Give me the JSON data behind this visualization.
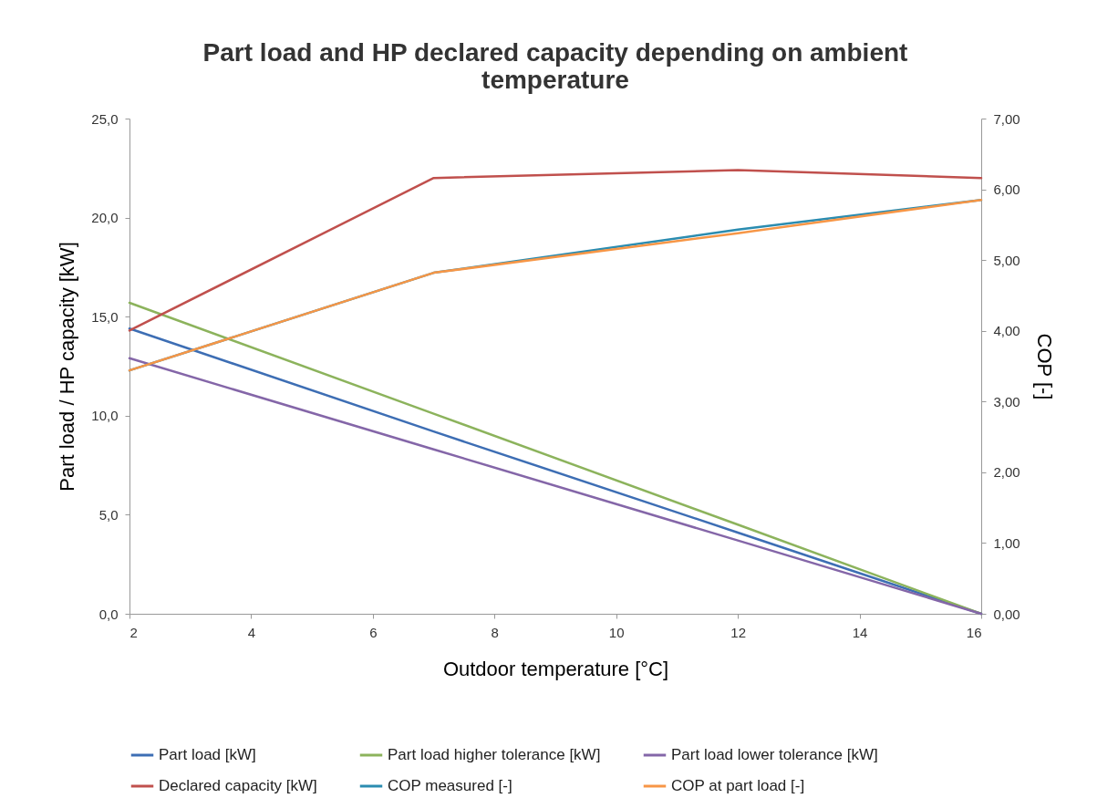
{
  "chart_data": {
    "type": "line",
    "title": "Part load and HP declared capacity depending on ambient temperature",
    "xlabel": "Outdoor temperature [°C]",
    "ylabel": "Part load / HP capacity [kW]",
    "y2label": "COP [-]",
    "x": [
      2,
      7,
      12,
      16
    ],
    "series": [
      {
        "name": "Part load [kW]",
        "color": "#3d6eb4",
        "values": [
          14.4,
          9.2,
          4.1,
          0
        ]
      },
      {
        "name": "Part load higher tolerance [kW]",
        "color": "#8cb35c",
        "values": [
          15.7,
          10.1,
          4.5,
          0
        ]
      },
      {
        "name": "Part load lower tolerance [kW]",
        "color": "#8466a8",
        "values": [
          12.9,
          8.3,
          3.7,
          0
        ]
      },
      {
        "name": "Declared capacity [kW]",
        "color": "#c0504d",
        "values": [
          14.3,
          22.0,
          22.4,
          22.0
        ]
      },
      {
        "name": "COP measured [-]",
        "color": "#2b8cb0",
        "axis": "y2",
        "values": [
          3.44,
          4.82,
          5.43,
          5.85
        ]
      },
      {
        "name": "COP at part load [-]",
        "color": "#f79646",
        "axis": "y2",
        "values": [
          3.44,
          4.82,
          5.38,
          5.85
        ]
      }
    ],
    "xlim": [
      2,
      16
    ],
    "xticks": [
      2,
      4,
      6,
      8,
      10,
      12,
      14,
      16
    ],
    "ylim": [
      0,
      25
    ],
    "yticks": [
      {
        "value": 0,
        "label": "0,0"
      },
      {
        "value": 5,
        "label": "5,0"
      },
      {
        "value": 10,
        "label": "10,0"
      },
      {
        "value": 15,
        "label": "15,0"
      },
      {
        "value": 20,
        "label": "20,0"
      },
      {
        "value": 25,
        "label": "25,0"
      }
    ],
    "y2lim": [
      0,
      7
    ],
    "y2ticks": [
      {
        "value": 0,
        "label": "0,00"
      },
      {
        "value": 1,
        "label": "1,00"
      },
      {
        "value": 2,
        "label": "2,00"
      },
      {
        "value": 3,
        "label": "3,00"
      },
      {
        "value": 4,
        "label": "4,00"
      },
      {
        "value": 5,
        "label": "5,00"
      },
      {
        "value": 6,
        "label": "6,00"
      },
      {
        "value": 7,
        "label": "7,00"
      }
    ],
    "grid": false,
    "legend": "bottom",
    "marker": "none",
    "line_style": "solid"
  }
}
